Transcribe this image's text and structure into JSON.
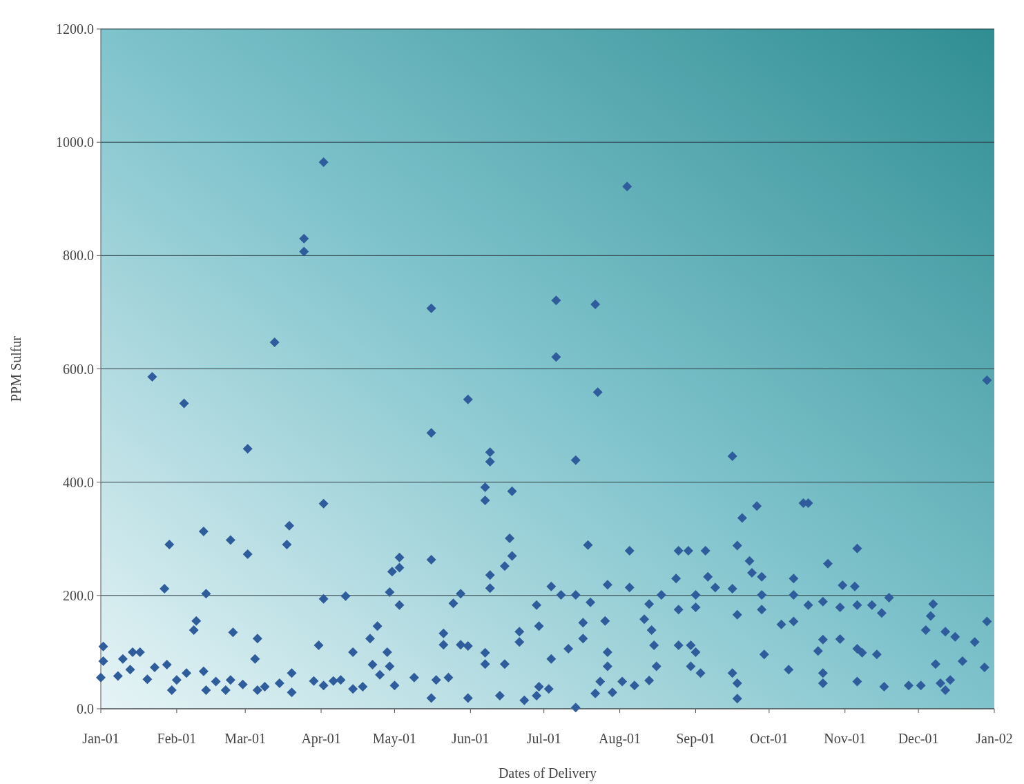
{
  "chart_data": {
    "type": "scatter",
    "xlabel": "Dates of Delivery",
    "ylabel": "PPM Sulfur",
    "marker": "diamond",
    "grid": "y",
    "xlim": [
      "2001-01-01",
      "2002-01-01"
    ],
    "xticks": [
      {
        "value": "2001-01-01",
        "label": "Jan-01"
      },
      {
        "value": "2001-02-01",
        "label": "Feb-01"
      },
      {
        "value": "2001-03-01",
        "label": "Mar-01"
      },
      {
        "value": "2001-04-01",
        "label": "Apr-01"
      },
      {
        "value": "2001-05-01",
        "label": "May-01"
      },
      {
        "value": "2001-06-01",
        "label": "Jun-01"
      },
      {
        "value": "2001-07-01",
        "label": "Jul-01"
      },
      {
        "value": "2001-08-01",
        "label": "Aug-01"
      },
      {
        "value": "2001-09-01",
        "label": "Sep-01"
      },
      {
        "value": "2001-10-01",
        "label": "Oct-01"
      },
      {
        "value": "2001-11-01",
        "label": "Nov-01"
      },
      {
        "value": "2001-12-01",
        "label": "Dec-01"
      },
      {
        "value": "2002-01-01",
        "label": "Jan-02"
      }
    ],
    "ylim": [
      0,
      1200
    ],
    "yticks": [
      {
        "value": 0,
        "label": "0.0"
      },
      {
        "value": 200,
        "label": "200.0"
      },
      {
        "value": 400,
        "label": "400.0"
      },
      {
        "value": 600,
        "label": "600.0"
      },
      {
        "value": 800,
        "label": "800.0"
      },
      {
        "value": 1000,
        "label": "1000.0"
      },
      {
        "value": 1200,
        "label": "1200.0"
      }
    ],
    "series": [
      {
        "color": "#2f5d9c",
        "x": [
          "2001-01-01",
          "2001-01-02",
          "2001-01-02",
          "2001-01-08",
          "2001-01-10",
          "2001-01-13",
          "2001-01-14",
          "2001-01-17",
          "2001-01-20",
          "2001-01-22",
          "2001-01-23",
          "2001-01-27",
          "2001-01-28",
          "2001-01-29",
          "2001-01-30",
          "2001-02-01",
          "2001-02-04",
          "2001-02-05",
          "2001-02-08",
          "2001-02-09",
          "2001-02-12",
          "2001-02-13",
          "2001-02-12",
          "2001-02-13",
          "2001-02-17",
          "2001-02-21",
          "2001-02-23",
          "2001-02-24",
          "2001-02-23",
          "2001-02-28",
          "2001-03-02",
          "2001-03-02",
          "2001-03-05",
          "2001-03-06",
          "2001-03-06",
          "2001-03-09",
          "2001-03-13",
          "2001-03-15",
          "2001-03-18",
          "2001-03-19",
          "2001-03-20",
          "2001-03-20",
          "2001-03-25",
          "2001-03-25",
          "2001-03-29",
          "2001-04-02",
          "2001-04-02",
          "2001-04-02",
          "2001-03-31",
          "2001-04-02",
          "2001-04-06",
          "2001-04-09",
          "2001-04-11",
          "2001-04-14",
          "2001-04-14",
          "2001-04-18",
          "2001-04-21",
          "2001-04-24",
          "2001-04-22",
          "2001-04-25",
          "2001-04-28",
          "2001-04-29",
          "2001-04-30",
          "2001-05-03",
          "2001-05-03",
          "2001-05-03",
          "2001-04-29",
          "2001-05-01",
          "2001-05-09",
          "2001-05-16",
          "2001-05-16",
          "2001-05-16",
          "2001-05-16",
          "2001-05-18",
          "2001-05-21",
          "2001-05-21",
          "2001-05-23",
          "2001-05-25",
          "2001-05-28",
          "2001-05-28",
          "2001-05-31",
          "2001-05-31",
          "2001-05-31",
          "2001-06-07",
          "2001-06-07",
          "2001-06-09",
          "2001-06-09",
          "2001-06-09",
          "2001-06-09",
          "2001-06-07",
          "2001-06-07",
          "2001-06-13",
          "2001-06-15",
          "2001-06-15",
          "2001-06-18",
          "2001-06-17",
          "2001-06-18",
          "2001-06-21",
          "2001-06-21",
          "2001-06-23",
          "2001-06-28",
          "2001-06-29",
          "2001-06-28",
          "2001-06-29",
          "2001-07-03",
          "2001-07-04",
          "2001-07-04",
          "2001-07-06",
          "2001-07-06",
          "2001-07-08",
          "2001-07-11",
          "2001-07-14",
          "2001-07-14",
          "2001-07-14",
          "2001-07-17",
          "2001-07-17",
          "2001-07-19",
          "2001-07-20",
          "2001-07-22",
          "2001-07-23",
          "2001-07-22",
          "2001-07-24",
          "2001-07-27",
          "2001-07-26",
          "2001-07-27",
          "2001-07-27",
          "2001-07-29",
          "2001-08-02",
          "2001-08-04",
          "2001-08-05",
          "2001-08-05",
          "2001-08-07",
          "2001-08-11",
          "2001-08-13",
          "2001-08-13",
          "2001-08-14",
          "2001-08-15",
          "2001-08-16",
          "2001-08-18",
          "2001-08-24",
          "2001-08-25",
          "2001-08-25",
          "2001-08-25",
          "2001-08-29",
          "2001-08-30",
          "2001-08-30",
          "2001-09-01",
          "2001-09-01",
          "2001-09-01",
          "2001-09-03",
          "2001-09-05",
          "2001-09-06",
          "2001-09-09",
          "2001-09-16",
          "2001-09-16",
          "2001-09-16",
          "2001-09-18",
          "2001-09-18",
          "2001-09-18",
          "2001-09-18",
          "2001-09-20",
          "2001-09-23",
          "2001-09-24",
          "2001-09-26",
          "2001-09-28",
          "2001-09-28",
          "2001-09-28",
          "2001-09-29",
          "2001-10-06",
          "2001-10-09",
          "2001-10-11",
          "2001-10-11",
          "2001-10-11",
          "2001-10-15",
          "2001-10-17",
          "2001-10-17",
          "2001-10-21",
          "2001-10-23",
          "2001-10-23",
          "2001-10-23",
          "2001-10-23",
          "2001-10-25",
          "2001-10-30",
          "2001-10-31",
          "2001-10-30",
          "2001-11-05",
          "2001-11-06",
          "2001-11-06",
          "2001-11-06",
          "2001-11-06",
          "2001-11-08",
          "2001-11-12",
          "2001-11-14",
          "2001-11-16",
          "2001-11-17",
          "2001-11-19",
          "2001-11-27",
          "2001-12-02",
          "2001-12-04",
          "2001-12-06",
          "2001-12-07",
          "2001-12-08",
          "2001-12-10",
          "2001-12-12",
          "2001-12-12",
          "2001-12-14",
          "2001-12-16",
          "2001-12-19",
          "2001-12-24",
          "2001-12-28",
          "2001-12-29",
          "2001-12-29"
        ],
        "values": [
          55,
          110,
          84,
          58,
          88,
          69,
          100,
          100,
          52,
          586,
          73,
          212,
          78,
          290,
          33,
          51,
          539,
          63,
          139,
          155,
          313,
          203,
          66,
          33,
          48,
          33,
          298,
          135,
          51,
          43,
          459,
          273,
          88,
          124,
          33,
          39,
          647,
          45,
          290,
          323,
          29,
          63,
          830,
          807,
          49,
          362,
          965,
          194,
          112,
          41,
          49,
          51,
          199,
          100,
          35,
          39,
          124,
          146,
          78,
          60,
          100,
          206,
          242,
          267,
          249,
          183,
          75,
          41,
          55,
          707,
          487,
          263,
          19,
          51,
          133,
          113,
          55,
          186,
          203,
          113,
          111,
          546,
          19,
          368,
          391,
          453,
          436,
          236,
          213,
          99,
          79,
          23,
          252,
          79,
          384,
          301,
          270,
          136,
          118,
          15,
          183,
          146,
          23,
          39,
          35,
          216,
          88,
          721,
          621,
          201,
          106,
          439,
          201,
          2,
          124,
          152,
          289,
          188,
          714,
          559,
          27,
          48,
          219,
          155,
          100,
          75,
          29,
          48,
          922,
          279,
          214,
          41,
          158,
          185,
          50,
          139,
          112,
          75,
          201,
          230,
          279,
          175,
          112,
          279,
          112,
          75,
          201,
          179,
          100,
          63,
          279,
          233,
          214,
          446,
          212,
          63,
          18,
          288,
          166,
          45,
          337,
          261,
          240,
          358,
          233,
          201,
          175,
          96,
          149,
          69,
          154,
          230,
          201,
          363,
          363,
          183,
          102,
          189,
          122,
          45,
          63,
          256,
          179,
          218,
          123,
          216,
          283,
          183,
          48,
          106,
          99,
          183,
          96,
          169,
          39,
          196,
          41,
          41,
          139,
          164,
          185,
          79,
          45,
          33,
          136,
          51,
          127,
          84,
          118,
          73,
          580,
          154
        ]
      }
    ]
  }
}
